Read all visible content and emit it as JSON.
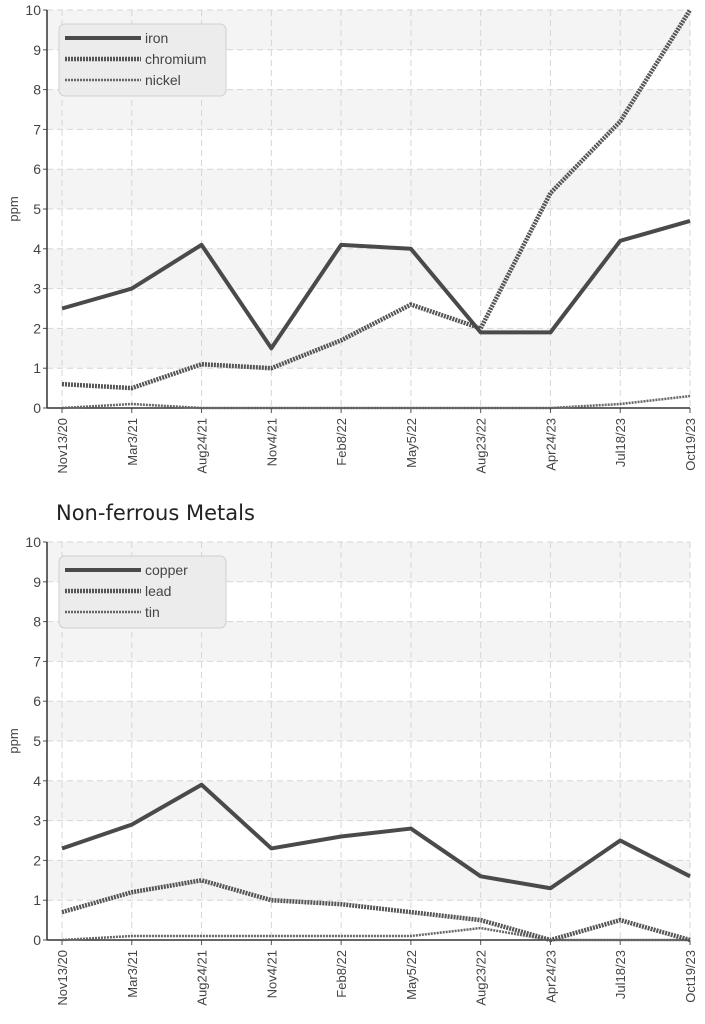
{
  "chart_data": [
    {
      "type": "line",
      "title": "",
      "xlabel": "",
      "ylabel": "ppm",
      "ylim": [
        0,
        10
      ],
      "yticks": [
        0,
        1,
        2,
        3,
        4,
        5,
        6,
        7,
        8,
        9,
        10
      ],
      "grid": true,
      "legend_position": "top-left",
      "categories": [
        "Nov13/20",
        "Mar3/21",
        "Aug24/21",
        "Nov4/21",
        "Feb8/22",
        "May5/22",
        "Aug23/22",
        "Apr24/23",
        "Jul18/23",
        "Oct19/23"
      ],
      "series": [
        {
          "name": "iron",
          "style": "solid",
          "values": [
            2.5,
            3.0,
            4.1,
            1.5,
            4.1,
            4.0,
            1.9,
            1.9,
            4.2,
            4.7
          ]
        },
        {
          "name": "chromium",
          "style": "dotted-thick",
          "values": [
            0.6,
            0.5,
            1.1,
            1.0,
            1.7,
            2.6,
            2.0,
            5.4,
            7.2,
            10.0
          ]
        },
        {
          "name": "nickel",
          "style": "dotted-thin",
          "values": [
            0.0,
            0.1,
            0.0,
            0.0,
            0.0,
            0.0,
            0.0,
            0.0,
            0.1,
            0.3
          ]
        }
      ]
    },
    {
      "type": "line",
      "title": "Non-ferrous Metals",
      "xlabel": "",
      "ylabel": "ppm",
      "ylim": [
        0,
        10
      ],
      "yticks": [
        0,
        1,
        2,
        3,
        4,
        5,
        6,
        7,
        8,
        9,
        10
      ],
      "grid": true,
      "legend_position": "top-left",
      "categories": [
        "Nov13/20",
        "Mar3/21",
        "Aug24/21",
        "Nov4/21",
        "Feb8/22",
        "May5/22",
        "Aug23/22",
        "Apr24/23",
        "Jul18/23",
        "Oct19/23"
      ],
      "series": [
        {
          "name": "copper",
          "style": "solid",
          "values": [
            2.3,
            2.9,
            3.9,
            2.3,
            2.6,
            2.8,
            1.6,
            1.3,
            2.5,
            1.6
          ]
        },
        {
          "name": "lead",
          "style": "dotted-thick",
          "values": [
            0.7,
            1.2,
            1.5,
            1.0,
            0.9,
            0.7,
            0.5,
            0.0,
            0.5,
            0.0
          ]
        },
        {
          "name": "tin",
          "style": "dotted-thin",
          "values": [
            0.0,
            0.1,
            0.1,
            0.1,
            0.1,
            0.1,
            0.3,
            0.0,
            0.0,
            0.0
          ]
        }
      ]
    }
  ]
}
